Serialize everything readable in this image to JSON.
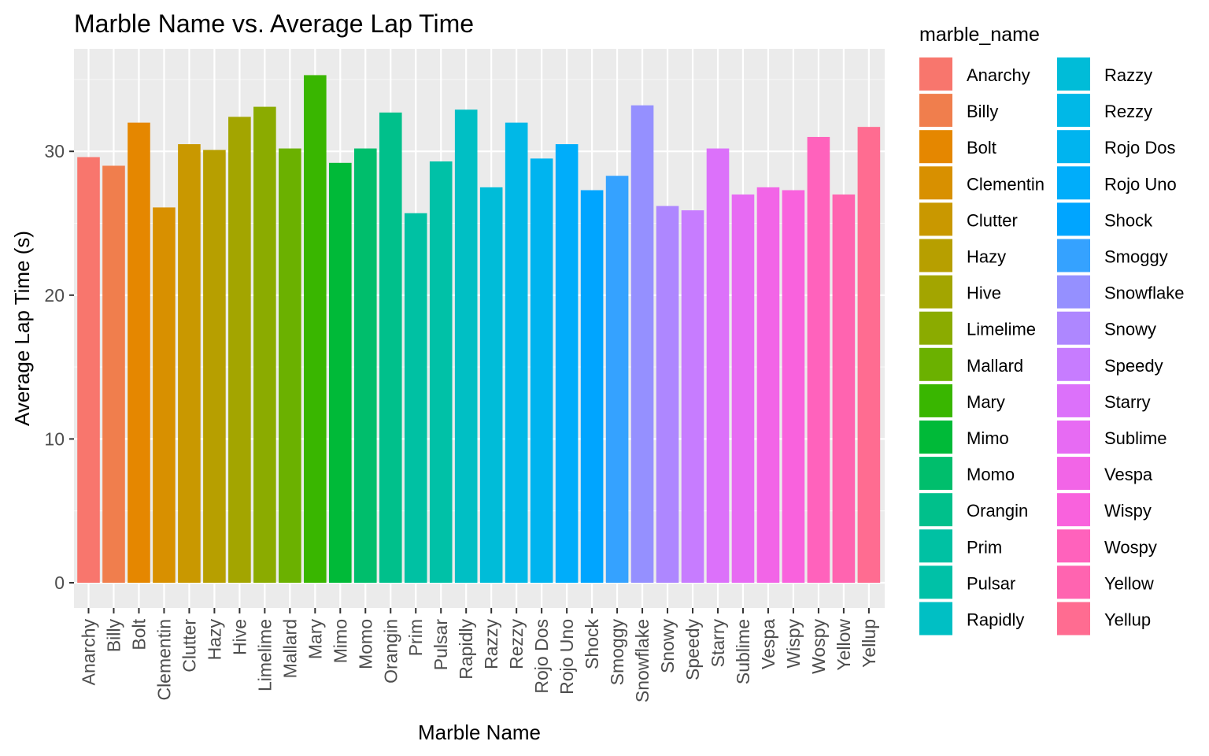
{
  "chart_data": {
    "type": "bar",
    "title": "Marble Name vs. Average Lap Time",
    "xlabel": "Marble Name",
    "ylabel": "Average Lap Time (s)",
    "ylim": [
      0,
      36.8
    ],
    "yticks": [
      0,
      10,
      20,
      30
    ],
    "grid": true,
    "legend": {
      "title": "marble_name",
      "position": "right",
      "columns": 2
    },
    "categories": [
      "Anarchy",
      "Billy",
      "Bolt",
      "Clementin",
      "Clutter",
      "Hazy",
      "Hive",
      "Limelime",
      "Mallard",
      "Mary",
      "Mimo",
      "Momo",
      "Orangin",
      "Prim",
      "Pulsar",
      "Rapidly",
      "Razzy",
      "Rezzy",
      "Rojo Dos",
      "Rojo Uno",
      "Shock",
      "Smoggy",
      "Snowflake",
      "Snowy",
      "Speedy",
      "Starry",
      "Sublime",
      "Vespa",
      "Wispy",
      "Wospy",
      "Yellow",
      "Yellup"
    ],
    "values": [
      29.6,
      29.0,
      32.0,
      26.1,
      30.5,
      30.1,
      32.4,
      33.1,
      30.2,
      35.3,
      29.2,
      30.2,
      32.7,
      25.7,
      29.3,
      32.9,
      27.5,
      32.0,
      29.5,
      30.5,
      27.3,
      28.3,
      33.2,
      26.2,
      25.9,
      30.2,
      27.0,
      27.5,
      27.3,
      31.0,
      27.0,
      31.7
    ],
    "colors": [
      "#F8766D",
      "#F07E4D",
      "#E58700",
      "#D89000",
      "#C99800",
      "#B79F00",
      "#A3A500",
      "#8BAB00",
      "#6BB100",
      "#39B600",
      "#00BA38",
      "#00BE6C",
      "#00C08B",
      "#00C1A3",
      "#00C1A7",
      "#00BFC4",
      "#00BCD8",
      "#00B8E7",
      "#00B4EF",
      "#00ADFA",
      "#00A5FF",
      "#35A2FF",
      "#9590FF",
      "#AE87FF",
      "#C77CFF",
      "#DC71FA",
      "#E76BF3",
      "#F265E7",
      "#F962DD",
      "#FF62BC",
      "#FF64B0",
      "#FF6C91"
    ]
  }
}
